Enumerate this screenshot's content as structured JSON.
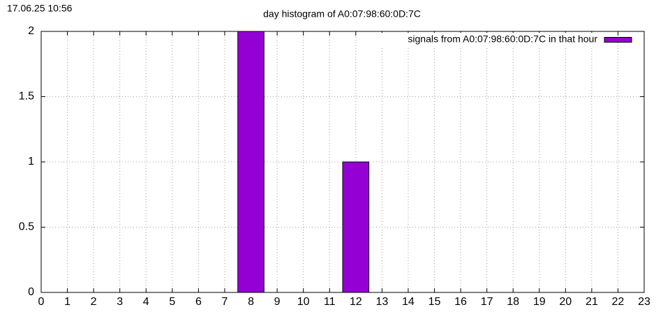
{
  "timestamp": "17.06.25 10:56",
  "chart_data": {
    "type": "bar",
    "title": "day histogram of A0:07:98:60:0D:7C",
    "x": [
      0,
      1,
      2,
      3,
      4,
      5,
      6,
      7,
      8,
      9,
      10,
      11,
      12,
      13,
      14,
      15,
      16,
      17,
      18,
      19,
      20,
      21,
      22,
      23
    ],
    "series": [
      {
        "name": "signals from A0:07:98:60:0D:7C in that hour",
        "color": "#9400d3",
        "values": [
          0,
          0,
          0,
          0,
          0,
          0,
          0,
          0,
          2,
          0,
          0,
          0,
          1,
          0,
          0,
          0,
          0,
          0,
          0,
          0,
          0,
          0,
          0,
          0
        ]
      }
    ],
    "xlim": [
      0,
      23
    ],
    "xticks": [
      0,
      1,
      2,
      3,
      4,
      5,
      6,
      7,
      8,
      9,
      10,
      11,
      12,
      13,
      14,
      15,
      16,
      17,
      18,
      19,
      20,
      21,
      22,
      23
    ],
    "ylim": [
      0,
      2
    ],
    "yticks": [
      0,
      0.5,
      1,
      1.5,
      2
    ],
    "grid": true,
    "legend": "top-right"
  }
}
